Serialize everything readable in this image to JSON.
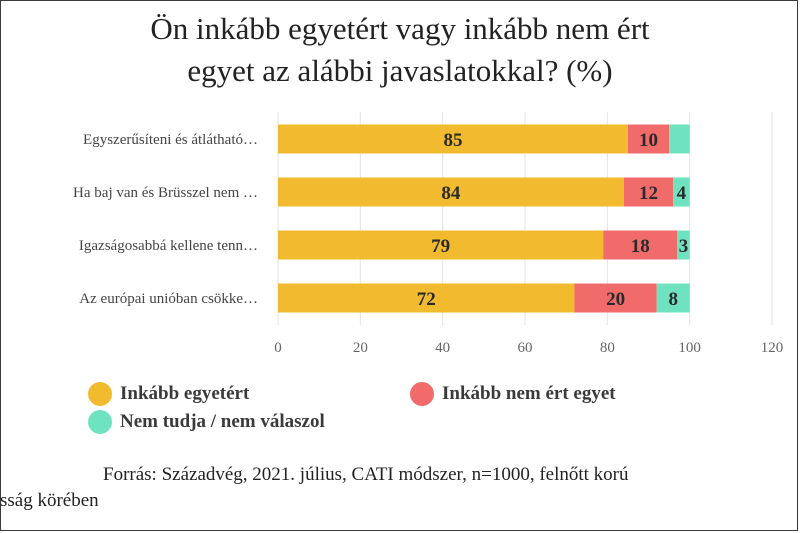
{
  "title_lines": [
    "Ön inkább egyetért vagy inkább nem ért",
    "egyet az alábbi javaslatokkal? (%)"
  ],
  "chart_data": {
    "type": "bar",
    "orientation": "horizontal",
    "stacked": true,
    "title": "Ön inkább egyetért vagy inkább nem ért egyet az alábbi javaslatokkal? (%)",
    "categories": [
      "Egyszerűsíteni és átlátható…",
      "Ha baj van és Brüsszel nem …",
      "Igazságosabbá kellene tenn…",
      "Az európai unióban csökke…"
    ],
    "series": [
      {
        "name": "Inkább egyetért",
        "color": "#f2bb2f",
        "values": [
          85,
          84,
          79,
          72
        ]
      },
      {
        "name": "Inkább nem ért egyet",
        "color": "#f16b6b",
        "values": [
          10,
          12,
          18,
          20
        ]
      },
      {
        "name": "Nem tudja / nem válaszol",
        "color": "#6fe3c0",
        "values": [
          5,
          4,
          3,
          8
        ]
      }
    ],
    "data_labels": [
      [
        "85",
        "84",
        "79",
        "72"
      ],
      [
        "10",
        "12",
        "18",
        "20"
      ],
      [
        "",
        "4",
        "3",
        "8"
      ]
    ],
    "xlim": [
      0,
      120
    ],
    "xticks": [
      "0",
      "20",
      "40",
      "60",
      "80",
      "100",
      "120"
    ],
    "grid": true,
    "legend_position": "bottom"
  },
  "legend": [
    {
      "label": "Inkább egyetért",
      "color": "#f2bb2f"
    },
    {
      "label": "Inkább nem ért egyet",
      "color": "#f16b6b"
    },
    {
      "label": "Nem tudja / nem válaszol",
      "color": "#6fe3c0"
    }
  ],
  "source": {
    "line1": "Forrás: Századvég, 2021. július, CATI módszer, n=1000, felnőtt korú",
    "line2": "sság körében"
  }
}
